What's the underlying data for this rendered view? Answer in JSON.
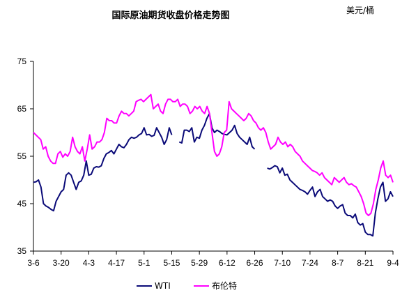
{
  "chart_data": {
    "type": "line",
    "title": "国际原油期货收盘价格走势图",
    "unit_label": "美元/桶",
    "xlabel": "",
    "ylabel": "",
    "ylim": [
      35,
      75
    ],
    "yticks": [
      35,
      45,
      55,
      65,
      75
    ],
    "grid": false,
    "legend_position": "bottom",
    "x_tick_labels": [
      "3-6",
      "3-20",
      "4-3",
      "4-17",
      "5-1",
      "5-15",
      "5-29",
      "6-12",
      "6-26",
      "7-10",
      "7-24",
      "8-7",
      "8-21",
      "9-4"
    ],
    "series": [
      {
        "name": "WTI",
        "color": "#0a0a78",
        "values": [
          49.5,
          49.6,
          50.0,
          48.5,
          45.0,
          44.5,
          44.2,
          43.8,
          43.5,
          45.5,
          46.5,
          47.5,
          48.0,
          51.0,
          51.5,
          51.0,
          49.5,
          48.0,
          49.5,
          49.8,
          51.0,
          54.0,
          51.0,
          51.2,
          52.5,
          52.8,
          52.7,
          53.0,
          54.5,
          55.5,
          55.8,
          56.2,
          55.5,
          56.5,
          57.5,
          57.0,
          56.8,
          57.5,
          58.5,
          59.0,
          58.8,
          59.0,
          59.5,
          59.8,
          61.0,
          59.5,
          59.6,
          59.2,
          59.4,
          61.0,
          60.0,
          59.0,
          57.5,
          58.5,
          61.0,
          59.5,
          null,
          null,
          58.0,
          57.8,
          60.5,
          60.5,
          60.2,
          61.0,
          58.0,
          59.0,
          58.8,
          60.5,
          61.5,
          63.0,
          64.0,
          61.0,
          60.0,
          60.5,
          60.2,
          59.8,
          59.6,
          59.5,
          60.0,
          60.5,
          61.5,
          59.8,
          59.0,
          58.5,
          58.0,
          57.5,
          59.0,
          57.0,
          56.5,
          null,
          null,
          null,
          null,
          52.5,
          52.3,
          52.6,
          53.0,
          52.8,
          51.5,
          52.5,
          51.0,
          51.2,
          50.0,
          49.5,
          49.0,
          48.5,
          48.0,
          47.8,
          47.5,
          47.0,
          47.8,
          48.5,
          46.5,
          47.5,
          48.0,
          46.5,
          46.0,
          45.5,
          45.8,
          45.5,
          44.5,
          44.0,
          44.5,
          44.8,
          43.0,
          42.5,
          42.5,
          42.0,
          42.8,
          41.0,
          40.5,
          40.8,
          39.0,
          38.5,
          38.5,
          38.2,
          43.0,
          46.0,
          48.5,
          49.5,
          45.5,
          46.0,
          47.5,
          46.5
        ]
      },
      {
        "name": "布伦特",
        "color": "#ff00ff",
        "values": [
          60.0,
          59.5,
          59.0,
          58.5,
          56.5,
          57.0,
          55.0,
          54.0,
          53.5,
          53.5,
          55.5,
          56.0,
          54.8,
          55.5,
          55.0,
          56.0,
          59.0,
          57.0,
          56.0,
          55.5,
          57.0,
          54.0,
          56.5,
          59.5,
          56.5,
          57.0,
          58.0,
          58.0,
          58.5,
          60.0,
          63.0,
          62.5,
          62.5,
          62.0,
          62.0,
          63.5,
          64.5,
          64.0,
          64.0,
          63.5,
          64.0,
          64.5,
          66.5,
          66.8,
          67.0,
          66.5,
          67.0,
          67.5,
          68.0,
          65.0,
          65.5,
          66.0,
          64.5,
          64.0,
          66.0,
          67.0,
          67.0,
          66.5,
          66.5,
          67.0,
          65.5,
          66.0,
          66.0,
          65.5,
          64.0,
          64.5,
          65.5,
          65.0,
          65.5,
          64.5,
          64.0,
          65.5,
          64.0,
          60.0,
          56.0,
          55.0,
          55.5,
          57.0,
          60.0,
          60.5,
          66.5,
          65.0,
          64.5,
          64.0,
          63.5,
          63.0,
          62.5,
          63.0,
          64.0,
          63.5,
          62.5,
          62.0,
          61.0,
          60.5,
          61.0,
          60.0,
          58.0,
          56.5,
          57.0,
          57.5,
          59.0,
          58.0,
          57.5,
          58.0,
          57.0,
          57.5,
          57.0,
          56.0,
          55.5,
          55.0,
          54.0,
          53.5,
          53.0,
          52.5,
          52.0,
          51.8,
          51.5,
          51.0,
          51.5,
          50.5,
          50.0,
          49.5,
          49.0,
          50.5,
          50.0,
          49.5,
          50.0,
          50.5,
          49.5,
          49.0,
          49.2,
          48.8,
          48.5,
          47.5,
          46.5,
          45.0,
          43.0,
          42.5,
          43.0,
          45.0,
          48.0,
          50.0,
          52.5,
          54.0,
          51.0,
          50.5,
          51.0,
          49.5
        ]
      }
    ]
  }
}
